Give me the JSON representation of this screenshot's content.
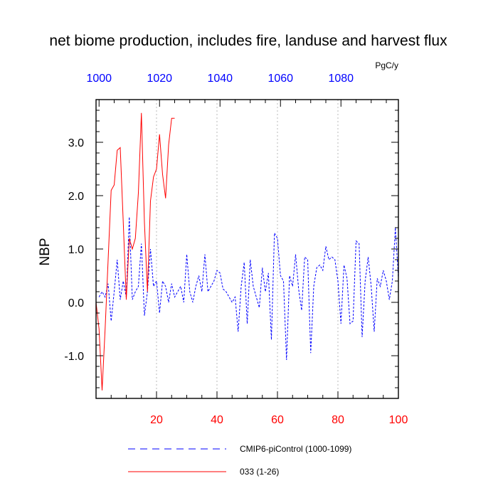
{
  "chart_data": {
    "type": "line",
    "title": "net biome production, includes fire, landuse and harvest flux",
    "units": "PgC/y",
    "ylabel": "NBP",
    "ylim": [
      -1.8,
      3.8
    ],
    "yticks": [
      -1.0,
      0.0,
      1.0,
      2.0,
      3.0
    ],
    "ytick_labels": [
      "-1.0",
      "0.0",
      "1.0",
      "2.0",
      "3.0"
    ],
    "bottom_axis": {
      "range": [
        0,
        100
      ],
      "ticks": [
        20,
        40,
        60,
        80,
        100
      ],
      "tick_labels": [
        "20",
        "40",
        "60",
        "80",
        "100"
      ],
      "color": "#ff0000"
    },
    "top_axis": {
      "range": [
        999,
        1099
      ],
      "ticks": [
        1000,
        1020,
        1040,
        1060,
        1080
      ],
      "tick_labels": [
        "1000",
        "1020",
        "1040",
        "1060",
        "1080"
      ],
      "color": "#0000ff"
    },
    "grid": "vertical dotted at bottom-axis ticks",
    "legend_position": "bottom",
    "series": [
      {
        "name": "CMIP6-piControl (1000-1099)",
        "color": "#0000ff",
        "style": "dashed",
        "axis": "top",
        "x": [
          1000,
          1001,
          1002,
          1003,
          1004,
          1005,
          1006,
          1007,
          1008,
          1009,
          1010,
          1011,
          1012,
          1013,
          1014,
          1015,
          1016,
          1017,
          1018,
          1019,
          1020,
          1021,
          1022,
          1023,
          1024,
          1025,
          1026,
          1027,
          1028,
          1029,
          1030,
          1031,
          1032,
          1033,
          1034,
          1035,
          1036,
          1037,
          1038,
          1039,
          1040,
          1041,
          1042,
          1043,
          1044,
          1045,
          1046,
          1047,
          1048,
          1049,
          1050,
          1051,
          1052,
          1053,
          1054,
          1055,
          1056,
          1057,
          1058,
          1059,
          1060,
          1061,
          1062,
          1063,
          1064,
          1065,
          1066,
          1067,
          1068,
          1069,
          1070,
          1071,
          1072,
          1073,
          1074,
          1075,
          1076,
          1077,
          1078,
          1079,
          1080,
          1081,
          1082,
          1083,
          1084,
          1085,
          1086,
          1087,
          1088,
          1089,
          1090,
          1091,
          1092,
          1093,
          1094,
          1095,
          1096,
          1097,
          1098,
          1099
        ],
        "y": [
          0.1,
          0.2,
          0.1,
          0.35,
          -0.35,
          0.2,
          0.8,
          0.05,
          0.4,
          0.1,
          1.6,
          0.05,
          0.2,
          0.3,
          1.1,
          -0.25,
          0.2,
          1.0,
          0.3,
          0.4,
          -0.2,
          0.4,
          0.3,
          0.0,
          0.35,
          0.1,
          0.2,
          0.3,
          0.0,
          0.9,
          0.2,
          0.0,
          0.3,
          0.5,
          0.2,
          0.9,
          0.2,
          0.3,
          0.4,
          0.6,
          0.55,
          0.25,
          0.2,
          0.1,
          0.0,
          0.1,
          -0.55,
          0.3,
          0.75,
          -0.4,
          0.8,
          0.3,
          0.1,
          -0.1,
          0.65,
          0.2,
          0.55,
          -0.7,
          1.3,
          1.2,
          0.5,
          0.4,
          -1.08,
          0.5,
          0.3,
          0.9,
          0.25,
          -0.15,
          0.85,
          0.8,
          -0.95,
          0.3,
          0.65,
          0.7,
          0.6,
          1.05,
          0.8,
          0.85,
          0.8,
          0.4,
          -0.4,
          0.7,
          0.45,
          -0.4,
          -0.35,
          1.15,
          1.1,
          -0.65,
          0.4,
          0.85,
          0.3,
          -0.55,
          0.45,
          0.3,
          0.6,
          0.4,
          0.05,
          0.4,
          1.4,
          0.45
        ]
      },
      {
        "name": "033 (1-26)",
        "color": "#ff0000",
        "style": "solid",
        "axis": "bottom",
        "x": [
          0,
          1,
          2,
          3,
          4,
          5,
          6,
          7,
          8,
          9,
          10,
          11,
          12,
          13,
          14,
          15,
          16,
          17,
          18,
          19,
          20,
          21,
          22,
          23,
          24,
          25,
          26
        ],
        "y": [
          0.0,
          -0.5,
          -1.65,
          -0.5,
          0.8,
          2.1,
          2.2,
          2.85,
          2.9,
          1.5,
          0.05,
          1.2,
          1.0,
          1.2,
          2.05,
          3.55,
          1.5,
          0.2,
          1.9,
          2.35,
          2.5,
          3.15,
          2.4,
          1.95,
          2.95,
          3.45,
          3.45
        ]
      }
    ]
  }
}
